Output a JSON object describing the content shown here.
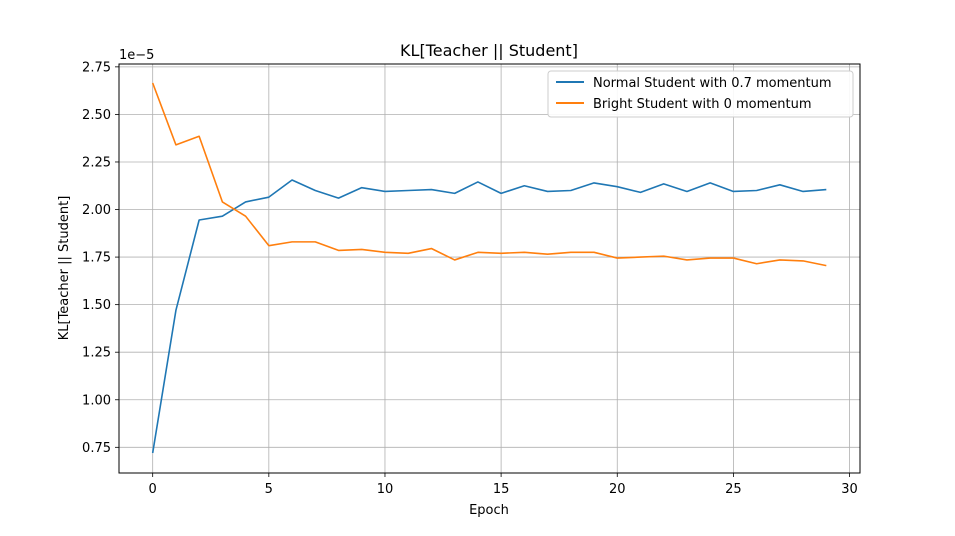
{
  "chart_data": {
    "type": "line",
    "title": "KL[Teacher || Student]",
    "xlabel": "Epoch",
    "ylabel": "KL[Teacher || Student]",
    "y_multiplier_label": "1e−5",
    "xlim": [
      -1.45,
      30.45
    ],
    "ylim": [
      0.615,
      2.765
    ],
    "x_ticks": [
      0,
      5,
      10,
      15,
      20,
      25,
      30
    ],
    "x_tick_labels": [
      "0",
      "5",
      "10",
      "15",
      "20",
      "25",
      "30"
    ],
    "y_ticks": [
      0.75,
      1.0,
      1.25,
      1.5,
      1.75,
      2.0,
      2.25,
      2.5,
      2.75
    ],
    "y_tick_labels": [
      "0.75",
      "1.00",
      "1.25",
      "1.50",
      "1.75",
      "2.00",
      "2.25",
      "2.50",
      "2.75"
    ],
    "grid": true,
    "legend_position": "top-right",
    "x": [
      0,
      1,
      2,
      3,
      4,
      5,
      6,
      7,
      8,
      9,
      10,
      11,
      12,
      13,
      14,
      15,
      16,
      17,
      18,
      19,
      20,
      21,
      22,
      23,
      24,
      25,
      26,
      27,
      28,
      29
    ],
    "series": [
      {
        "name": "Normal Student with 0.7 momentum",
        "color": "#1f77b4",
        "values": [
          0.72,
          1.47,
          1.945,
          1.965,
          2.04,
          2.065,
          2.155,
          2.1,
          2.06,
          2.115,
          2.095,
          2.1,
          2.105,
          2.085,
          2.145,
          2.085,
          2.125,
          2.095,
          2.1,
          2.14,
          2.12,
          2.09,
          2.135,
          2.095,
          2.14,
          2.095,
          2.1,
          2.13,
          2.095,
          2.105
        ]
      },
      {
        "name": "Bright Student with 0 momentum",
        "color": "#ff7f0e",
        "values": [
          2.665,
          2.34,
          2.385,
          2.04,
          1.965,
          1.81,
          1.83,
          1.83,
          1.785,
          1.79,
          1.775,
          1.77,
          1.795,
          1.735,
          1.775,
          1.77,
          1.775,
          1.765,
          1.775,
          1.775,
          1.745,
          1.75,
          1.755,
          1.735,
          1.745,
          1.745,
          1.715,
          1.735,
          1.73,
          1.705
        ]
      }
    ]
  }
}
